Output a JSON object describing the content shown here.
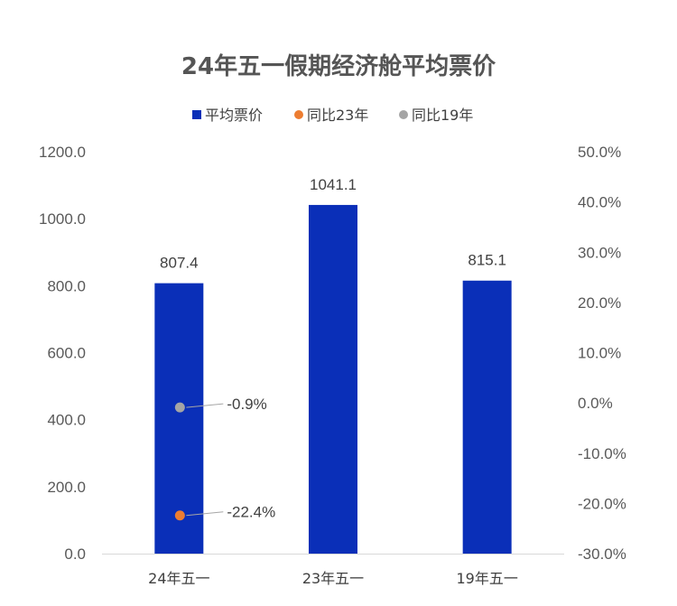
{
  "chart_data": {
    "type": "bar",
    "title": "24年五一假期经济舱平均票价",
    "categories": [
      "24年五一",
      "23年五一",
      "19年五一"
    ],
    "series": [
      {
        "name": "平均票价",
        "kind": "bar",
        "axis": "left",
        "color": "#0A2FB8",
        "values": [
          807.4,
          1041.1,
          815.1
        ],
        "labels": [
          "807.4",
          "1041.1",
          "815.1"
        ]
      },
      {
        "name": "同比23年",
        "kind": "point",
        "axis": "right",
        "color": "#ED7D31",
        "values": [
          -22.4,
          null,
          null
        ],
        "labels": [
          "-22.4%",
          "",
          ""
        ]
      },
      {
        "name": "同比19年",
        "kind": "point",
        "axis": "right",
        "color": "#A5A5A5",
        "values": [
          -0.9,
          null,
          null
        ],
        "labels": [
          "-0.9%",
          "",
          ""
        ]
      }
    ],
    "y_left": {
      "lim": [
        0,
        1200
      ],
      "ticks": [
        "0.0",
        "200.0",
        "400.0",
        "600.0",
        "800.0",
        "1000.0",
        "1200.0"
      ]
    },
    "y_right": {
      "lim": [
        -30,
        50
      ],
      "ticks": [
        "-30.0%",
        "-20.0%",
        "-10.0%",
        "0.0%",
        "10.0%",
        "20.0%",
        "30.0%",
        "40.0%",
        "50.0%"
      ]
    },
    "grid": false,
    "legend_position": "top-center"
  }
}
